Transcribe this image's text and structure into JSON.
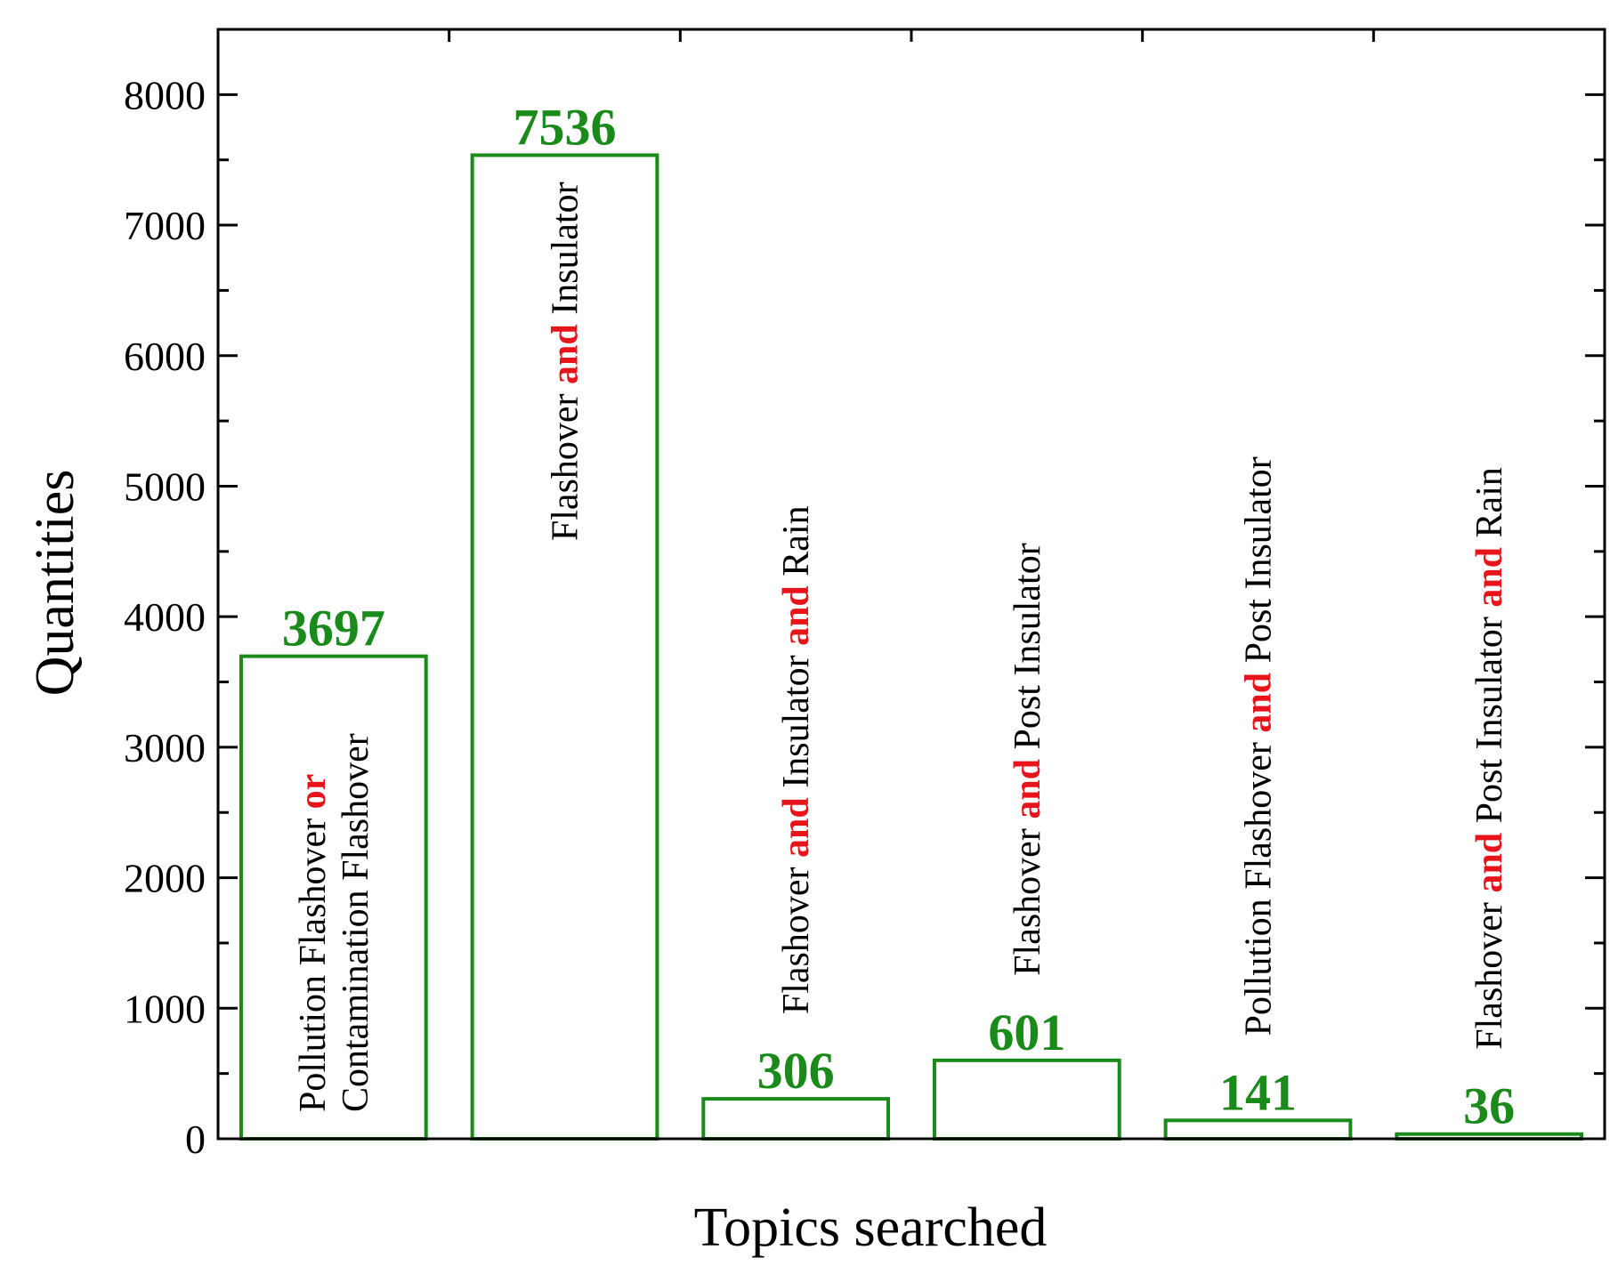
{
  "chart_data": {
    "type": "bar",
    "title": "",
    "xlabel": "Topics searched",
    "ylabel": "Quantities",
    "ylim": [
      0,
      8500
    ],
    "yticks": [
      0,
      1000,
      2000,
      3000,
      4000,
      5000,
      6000,
      7000,
      8000
    ],
    "grid": false,
    "categories": [
      [
        {
          "t": "Pollution Flashover ",
          "op": false
        },
        {
          "t": "or",
          "op": true
        }
      ],
      [
        {
          "t": "Flashover ",
          "op": false
        },
        {
          "t": "and",
          "op": true
        },
        {
          "t": " Insulator",
          "op": false
        }
      ],
      [
        {
          "t": "Flashover ",
          "op": false
        },
        {
          "t": "and",
          "op": true
        },
        {
          "t": " Insulator ",
          "op": false
        },
        {
          "t": "and",
          "op": true
        },
        {
          "t": " Rain",
          "op": false
        }
      ],
      [
        {
          "t": "Flashover ",
          "op": false
        },
        {
          "t": "and",
          "op": true
        },
        {
          "t": " Post Insulator",
          "op": false
        }
      ],
      [
        {
          "t": "Pollution Flashover ",
          "op": false
        },
        {
          "t": "and",
          "op": true
        },
        {
          "t": " Post Insulator",
          "op": false
        }
      ],
      [
        {
          "t": "Flashover ",
          "op": false
        },
        {
          "t": "and",
          "op": true
        },
        {
          "t": " Post Insulator ",
          "op": false
        },
        {
          "t": "and",
          "op": true
        },
        {
          "t": " Rain",
          "op": false
        }
      ]
    ],
    "category_second_lines": [
      "Contamination Flashover",
      "",
      "",
      "",
      "",
      ""
    ],
    "values": [
      3697,
      7536,
      306,
      601,
      141,
      36
    ],
    "value_labels": [
      "3697",
      "7536",
      "306",
      "601",
      "141",
      "36"
    ],
    "colors": {
      "bar_outline": "#1a8a1a",
      "value_label": "#1a8a1a",
      "operator": "#e8141b",
      "text": "#000000"
    }
  }
}
